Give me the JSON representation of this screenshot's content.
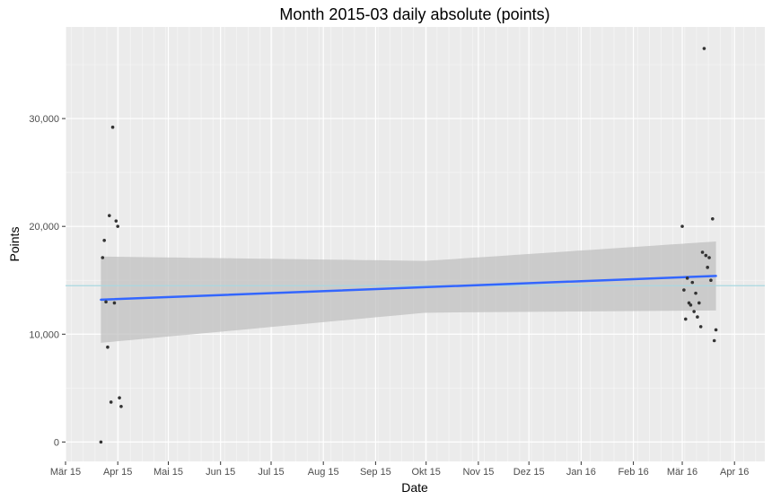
{
  "chart_data": {
    "type": "scatter",
    "title": "Month 2015-03 daily absolute (points)",
    "xlabel": "Date",
    "ylabel": "Points",
    "xlim": [
      "2015-03-01",
      "2016-04-19"
    ],
    "ylim": [
      -1800,
      38500
    ],
    "grid": true,
    "legend": "none",
    "x_ticks": [
      {
        "date": "2015-03-01",
        "label": "Mär 15"
      },
      {
        "date": "2015-04-01",
        "label": "Apr 15"
      },
      {
        "date": "2015-05-01",
        "label": "Mai 15"
      },
      {
        "date": "2015-06-01",
        "label": "Jun 15"
      },
      {
        "date": "2015-07-01",
        "label": "Jul 15"
      },
      {
        "date": "2015-08-01",
        "label": "Aug 15"
      },
      {
        "date": "2015-09-01",
        "label": "Sep 15"
      },
      {
        "date": "2015-10-01",
        "label": "Okt 15"
      },
      {
        "date": "2015-11-01",
        "label": "Nov 15"
      },
      {
        "date": "2015-12-01",
        "label": "Dez 15"
      },
      {
        "date": "2016-01-01",
        "label": "Jan 16"
      },
      {
        "date": "2016-02-01",
        "label": "Feb 16"
      },
      {
        "date": "2016-03-01",
        "label": "Mär 16"
      },
      {
        "date": "2016-04-01",
        "label": "Apr 16"
      }
    ],
    "y_ticks": [
      {
        "value": 0,
        "label": "0"
      },
      {
        "value": 10000,
        "label": "10,000"
      },
      {
        "value": 20000,
        "label": "20,000"
      },
      {
        "value": 30000,
        "label": "30,000"
      }
    ],
    "points": [
      {
        "date": "2015-03-22",
        "y": 0
      },
      {
        "date": "2015-03-23",
        "y": 17100
      },
      {
        "date": "2015-03-24",
        "y": 18700
      },
      {
        "date": "2015-03-25",
        "y": 13000
      },
      {
        "date": "2015-03-26",
        "y": 8800
      },
      {
        "date": "2015-03-27",
        "y": 21000
      },
      {
        "date": "2015-03-28",
        "y": 3700
      },
      {
        "date": "2015-03-29",
        "y": 29200
      },
      {
        "date": "2015-03-30",
        "y": 12900
      },
      {
        "date": "2015-03-31",
        "y": 20500
      },
      {
        "date": "2015-04-01",
        "y": 20000
      },
      {
        "date": "2015-04-02",
        "y": 4100
      },
      {
        "date": "2015-04-03",
        "y": 3300
      },
      {
        "date": "2016-03-01",
        "y": 20000
      },
      {
        "date": "2016-03-02",
        "y": 14100
      },
      {
        "date": "2016-03-03",
        "y": 11400
      },
      {
        "date": "2016-03-04",
        "y": 15200
      },
      {
        "date": "2016-03-05",
        "y": 12900
      },
      {
        "date": "2016-03-06",
        "y": 12700
      },
      {
        "date": "2016-03-07",
        "y": 14800
      },
      {
        "date": "2016-03-08",
        "y": 12100
      },
      {
        "date": "2016-03-09",
        "y": 13800
      },
      {
        "date": "2016-03-10",
        "y": 11600
      },
      {
        "date": "2016-03-11",
        "y": 12900
      },
      {
        "date": "2016-03-12",
        "y": 10700
      },
      {
        "date": "2016-03-13",
        "y": 17600
      },
      {
        "date": "2016-03-14",
        "y": 36500
      },
      {
        "date": "2016-03-15",
        "y": 17300
      },
      {
        "date": "2016-03-16",
        "y": 16200
      },
      {
        "date": "2016-03-17",
        "y": 17100
      },
      {
        "date": "2016-03-18",
        "y": 15000
      },
      {
        "date": "2016-03-19",
        "y": 20700
      },
      {
        "date": "2016-03-20",
        "y": 9400
      },
      {
        "date": "2016-03-21",
        "y": 10400
      }
    ],
    "trend": {
      "type": "linear",
      "start": {
        "date": "2015-03-22",
        "y": 13200
      },
      "end": {
        "date": "2016-03-21",
        "y": 15400
      },
      "ci_lower_start": 9200,
      "ci_upper_start": 17200,
      "ci_lower_mid": 12000,
      "ci_upper_mid": 16800,
      "ci_lower_end": 12200,
      "ci_upper_end": 18600,
      "ci_mid_date": "2015-10-01"
    },
    "reference_line": {
      "y": 14500
    },
    "colors": {
      "panel": "#ebebeb",
      "grid_major": "#ffffff",
      "grid_minor": "#f5f5f5",
      "point": "#333333",
      "trend": "#3366ff",
      "ribbon": "#bebebe",
      "reference": "#a8d8e0"
    }
  }
}
